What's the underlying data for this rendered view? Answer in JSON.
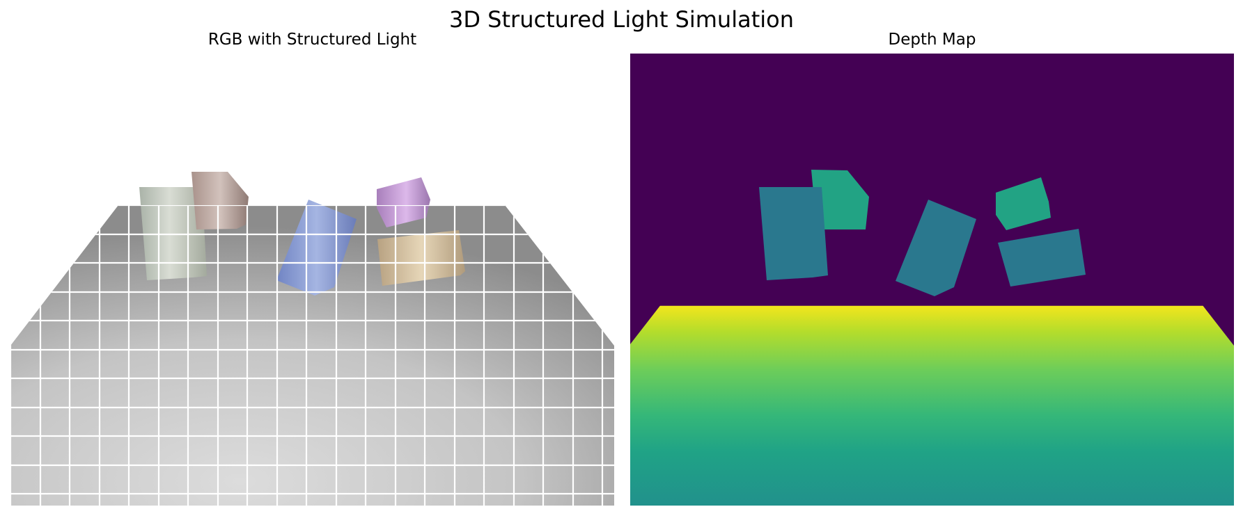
{
  "figure": {
    "title": "3D Structured Light Simulation"
  },
  "panels": {
    "rgb": {
      "title": "RGB with Structured Light"
    },
    "depth": {
      "title": "Depth Map"
    }
  },
  "colors": {
    "background": "#ffffff",
    "depth_far": "#440154",
    "depth_near_top": "#f2e51d",
    "depth_mid": "#5ec962",
    "depth_bottom": "#21918c",
    "object_depth_a": "#2a788e",
    "object_depth_b": "#22a384",
    "grid_lines": "#ffffff",
    "floor_light": "#dcdcdc",
    "floor_dark": "#8c8c8c"
  },
  "objects": [
    {
      "name": "pale-green-box",
      "color": "#c5cdc4"
    },
    {
      "name": "mauve-box",
      "color": "#b9a39d"
    },
    {
      "name": "blue-box",
      "color": "#8d9fd6"
    },
    {
      "name": "purple-cube",
      "color": "#c49ad6"
    },
    {
      "name": "tan-box",
      "color": "#d5c09d"
    }
  ]
}
